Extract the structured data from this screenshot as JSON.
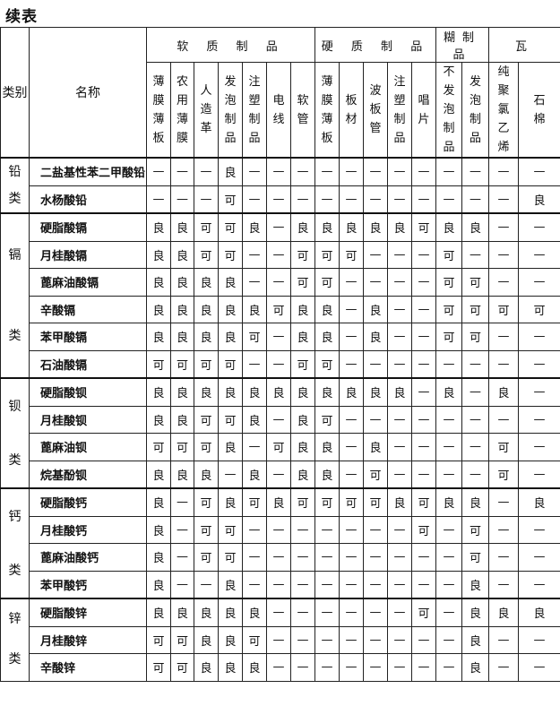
{
  "title": "续表",
  "header": {
    "category": "类别",
    "name": "名称",
    "groups": [
      {
        "label": "软 质 制 品",
        "columns": [
          "薄膜薄板",
          "农用薄膜",
          "人造革",
          "发泡制品",
          "注塑制品",
          "电线",
          "软管"
        ]
      },
      {
        "label": "硬 质 制 品",
        "columns": [
          "薄膜薄板",
          "板材",
          "波板管",
          "注塑制品",
          "唱片"
        ]
      },
      {
        "label": "糊制品",
        "columns": [
          "不发泡制品",
          "发泡制品"
        ]
      },
      {
        "label": "瓦",
        "columns": [
          "纯聚氯乙烯",
          "石棉"
        ]
      }
    ]
  },
  "categories": [
    {
      "label": "铅类",
      "rows": [
        {
          "name": "二盐基性苯二甲酸铅",
          "values": [
            "—",
            "—",
            "—",
            "良",
            "—",
            "—",
            "—",
            "—",
            "—",
            "—",
            "—",
            "—",
            "—",
            "—",
            "—",
            "—"
          ]
        },
        {
          "name": "水杨酸铅",
          "values": [
            "—",
            "—",
            "—",
            "可",
            "—",
            "—",
            "—",
            "—",
            "—",
            "—",
            "—",
            "—",
            "—",
            "—",
            "—",
            "良"
          ]
        }
      ]
    },
    {
      "label": "镉类",
      "rows": [
        {
          "name": "硬脂酸镉",
          "values": [
            "良",
            "良",
            "可",
            "可",
            "良",
            "—",
            "良",
            "良",
            "良",
            "良",
            "良",
            "可",
            "良",
            "良",
            "—",
            "—"
          ]
        },
        {
          "name": "月桂酸镉",
          "values": [
            "良",
            "良",
            "可",
            "可",
            "—",
            "—",
            "可",
            "可",
            "可",
            "—",
            "—",
            "—",
            "可",
            "—",
            "—",
            "—"
          ]
        },
        {
          "name": "蓖麻油酸镉",
          "values": [
            "良",
            "良",
            "良",
            "良",
            "—",
            "—",
            "可",
            "可",
            "—",
            "—",
            "—",
            "—",
            "可",
            "可",
            "—",
            "—"
          ]
        },
        {
          "name": "辛酸镉",
          "values": [
            "良",
            "良",
            "良",
            "良",
            "良",
            "可",
            "良",
            "良",
            "—",
            "良",
            "—",
            "—",
            "可",
            "可",
            "可",
            "可"
          ]
        },
        {
          "name": "苯甲酸镉",
          "values": [
            "良",
            "良",
            "良",
            "良",
            "可",
            "—",
            "良",
            "良",
            "—",
            "良",
            "—",
            "—",
            "可",
            "可",
            "—",
            "—"
          ]
        },
        {
          "name": "石油酸镉",
          "values": [
            "可",
            "可",
            "可",
            "可",
            "—",
            "—",
            "可",
            "可",
            "—",
            "—",
            "—",
            "—",
            "—",
            "—",
            "—",
            "—"
          ]
        }
      ]
    },
    {
      "label": "钡类",
      "rows": [
        {
          "name": "硬脂酸钡",
          "values": [
            "良",
            "良",
            "良",
            "良",
            "良",
            "良",
            "良",
            "良",
            "良",
            "良",
            "良",
            "—",
            "良",
            "—",
            "良",
            "—"
          ]
        },
        {
          "name": "月桂酸钡",
          "values": [
            "良",
            "良",
            "可",
            "可",
            "良",
            "—",
            "良",
            "可",
            "—",
            "—",
            "—",
            "—",
            "—",
            "—",
            "—",
            "—"
          ]
        },
        {
          "name": "蓖麻油钡",
          "values": [
            "可",
            "可",
            "可",
            "良",
            "—",
            "可",
            "良",
            "良",
            "—",
            "良",
            "—",
            "—",
            "—",
            "—",
            "可",
            "—"
          ]
        },
        {
          "name": "烷基酚钡",
          "values": [
            "良",
            "良",
            "良",
            "—",
            "良",
            "—",
            "良",
            "良",
            "—",
            "可",
            "—",
            "—",
            "—",
            "—",
            "可",
            "—"
          ]
        }
      ]
    },
    {
      "label": "钙类",
      "rows": [
        {
          "name": "硬脂酸钙",
          "values": [
            "良",
            "—",
            "可",
            "良",
            "可",
            "良",
            "可",
            "可",
            "可",
            "可",
            "良",
            "可",
            "良",
            "良",
            "—",
            "良"
          ]
        },
        {
          "name": "月桂酸钙",
          "values": [
            "良",
            "—",
            "可",
            "可",
            "—",
            "—",
            "—",
            "—",
            "—",
            "—",
            "—",
            "可",
            "—",
            "可",
            "—",
            "—"
          ]
        },
        {
          "name": "蓖麻油酸钙",
          "values": [
            "良",
            "—",
            "可",
            "可",
            "—",
            "—",
            "—",
            "—",
            "—",
            "—",
            "—",
            "—",
            "—",
            "可",
            "—",
            "—"
          ]
        },
        {
          "name": "苯甲酸钙",
          "values": [
            "良",
            "—",
            "—",
            "良",
            "—",
            "—",
            "—",
            "—",
            "—",
            "—",
            "—",
            "—",
            "—",
            "良",
            "—",
            "—"
          ]
        }
      ]
    },
    {
      "label": "锌类",
      "rows": [
        {
          "name": "硬脂酸锌",
          "values": [
            "良",
            "良",
            "良",
            "良",
            "良",
            "—",
            "—",
            "—",
            "—",
            "—",
            "—",
            "可",
            "—",
            "良",
            "良",
            "良"
          ]
        },
        {
          "name": "月桂酸锌",
          "values": [
            "可",
            "可",
            "良",
            "良",
            "可",
            "—",
            "—",
            "—",
            "—",
            "—",
            "—",
            "—",
            "—",
            "良",
            "—",
            "—"
          ]
        },
        {
          "name": "辛酸锌",
          "values": [
            "可",
            "可",
            "良",
            "良",
            "良",
            "—",
            "—",
            "—",
            "—",
            "—",
            "—",
            "—",
            "—",
            "良",
            "—",
            "—"
          ]
        }
      ]
    }
  ]
}
